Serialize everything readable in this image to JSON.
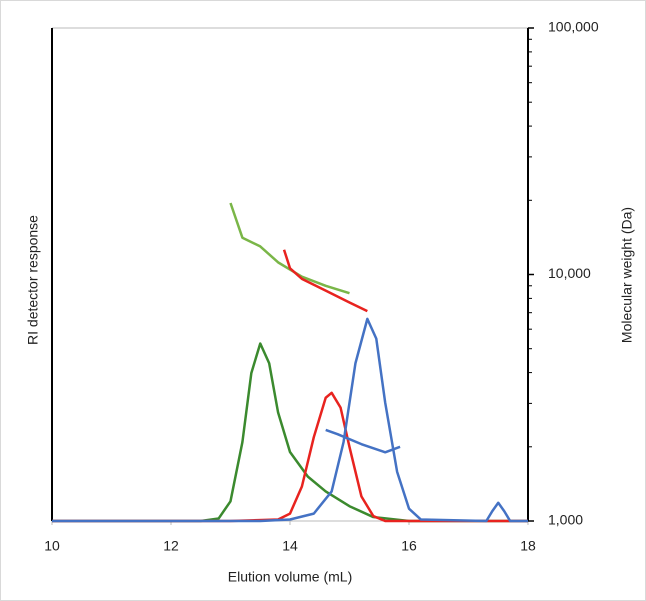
{
  "chart_data": {
    "type": "line",
    "x_label": "Elution volume (mL)",
    "y_label": "RI detector response",
    "y2_label": "Molecular weight (Da)",
    "xlim": [
      10,
      18
    ],
    "xticks": [
      10,
      12,
      14,
      16,
      18
    ],
    "ylim": [
      0,
      100
    ],
    "y2lim": [
      1000,
      100000
    ],
    "y2_log": true,
    "y2ticks": [
      {
        "value": 1000,
        "label": "1,000"
      },
      {
        "value": 10000,
        "label": "10,000"
      },
      {
        "value": 100000,
        "label": "100,000"
      }
    ],
    "series": [
      {
        "color": "#3b8a2e",
        "x": [
          10,
          12.5,
          12.8,
          13.0,
          13.2,
          13.35,
          13.5,
          13.65,
          13.8,
          14.0,
          14.3,
          14.6,
          15.0,
          15.4,
          16,
          18
        ],
        "values": [
          0,
          0,
          0.5,
          4,
          16,
          30,
          36,
          32,
          22,
          14,
          9,
          6,
          3,
          0.8,
          0,
          0
        ]
      },
      {
        "color": "#e8231f",
        "x": [
          10,
          13,
          13.8,
          14.0,
          14.2,
          14.4,
          14.6,
          14.7,
          14.85,
          15.0,
          15.2,
          15.4,
          15.6,
          18
        ],
        "values": [
          0,
          0,
          0.3,
          1.5,
          7,
          17,
          25,
          26,
          23,
          15,
          5,
          1,
          0,
          0
        ]
      },
      {
        "color": "#4472c4",
        "x": [
          10,
          13.5,
          14.0,
          14.4,
          14.7,
          14.9,
          15.1,
          15.3,
          15.45,
          15.6,
          15.8,
          16.0,
          16.2,
          17.3,
          17.4,
          17.5,
          17.6,
          17.7,
          18
        ],
        "values": [
          0,
          0,
          0.3,
          1.5,
          6,
          16,
          32,
          41,
          37,
          24,
          10,
          2.5,
          0.3,
          0,
          2,
          3.7,
          2,
          0,
          0
        ]
      },
      {
        "color": "#7ab648",
        "axis": "y2",
        "x": [
          13.0,
          13.2,
          13.5,
          13.8,
          14.2,
          14.6,
          15.0
        ],
        "values": [
          19500,
          14100,
          13000,
          11200,
          9800,
          9000,
          8400
        ]
      },
      {
        "color": "#e8231f",
        "axis": "y2",
        "x": [
          13.9,
          14.0,
          14.2,
          14.6,
          15.0,
          15.3
        ],
        "values": [
          12600,
          10600,
          9600,
          8600,
          7700,
          7100
        ]
      },
      {
        "color": "#4472c4",
        "axis": "y2",
        "x": [
          14.6,
          14.8,
          15.2,
          15.6,
          15.85
        ],
        "values": [
          2340,
          2250,
          2050,
          1900,
          2000
        ]
      }
    ]
  }
}
